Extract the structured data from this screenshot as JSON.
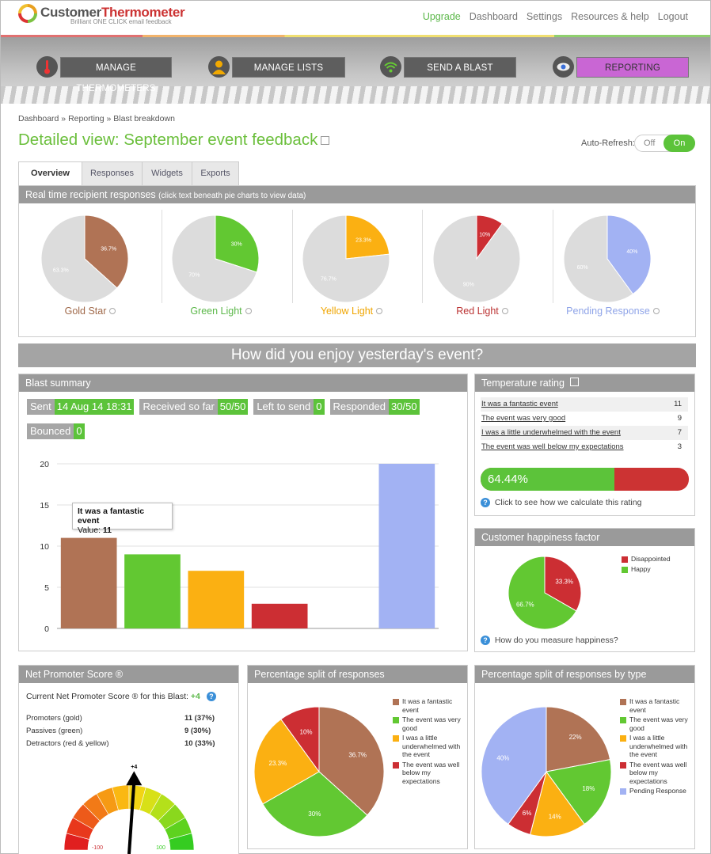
{
  "header": {
    "logo_primary": "Customer",
    "logo_secondary": "Thermometer",
    "logo_tagline": "Brilliant ONE CLICK email feedback",
    "nav": [
      "Upgrade",
      "Dashboard",
      "Settings",
      "Resources & help",
      "Logout"
    ]
  },
  "mainnav": [
    {
      "label": "MANAGE THERMOMETERS",
      "icon": "thermometer-icon"
    },
    {
      "label": "MANAGE LISTS",
      "icon": "person-icon"
    },
    {
      "label": "SEND A BLAST",
      "icon": "wifi-icon"
    },
    {
      "label": "REPORTING",
      "icon": "eye-icon"
    }
  ],
  "breadcrumb": [
    "Dashboard",
    "Reporting",
    "Blast breakdown"
  ],
  "breadcrumb_sep": "»",
  "page_title": "Detailed view: September event feedback",
  "auto_refresh": {
    "label": "Auto-Refresh:",
    "off": "Off",
    "on": "On"
  },
  "tabs": [
    "Overview",
    "Responses",
    "Widgets",
    "Exports"
  ],
  "realtime_panel": {
    "title": "Real time recipient responses",
    "hint": "(click text beneath pie charts to view data)"
  },
  "question": "How did you enjoy yesterday's event?",
  "blast_summary": {
    "title": "Blast summary",
    "stats": [
      {
        "label": "Sent",
        "value": "14 Aug 14 18:31"
      },
      {
        "label": "Received so far",
        "value": "50/50"
      },
      {
        "label": "Left to send",
        "value": "0"
      },
      {
        "label": "Responded",
        "value": "30/50"
      },
      {
        "label": "Bounced",
        "value": "0"
      }
    ]
  },
  "tooltip": {
    "title": "It was a fantastic event",
    "value_label": "Value:",
    "value": "11"
  },
  "temperature_rating": {
    "title": "Temperature rating",
    "rows": [
      {
        "label": "It was a fantastic event",
        "count": "11"
      },
      {
        "label": "The event was very good",
        "count": "9"
      },
      {
        "label": "I was a little underwhelmed with the event",
        "count": "7"
      },
      {
        "label": "The event was well below my expectations",
        "count": "3"
      }
    ],
    "rating_text": "64.44%",
    "rating_value": 64.44,
    "help_text": "Click to see how we calculate this rating"
  },
  "happiness": {
    "title": "Customer happiness factor",
    "help_text": "How do you measure happiness?"
  },
  "nps": {
    "title": "Net Promoter Score ®",
    "current_label": "Current Net Promoter Score ® for this Blast:",
    "current_value": "+4",
    "rows": [
      {
        "label": "Promoters (gold)",
        "value": "11 (37%)"
      },
      {
        "label": "Passives (green)",
        "value": "9 (30%)"
      },
      {
        "label": "Detractors (red & yellow)",
        "value": "10 (33%)"
      }
    ],
    "gauge_value": 4,
    "gauge_pointer_label": "+4",
    "gauge_min_label": "-100",
    "gauge_max_label": "100"
  },
  "split_panel": {
    "title": "Percentage split of responses"
  },
  "split_type_panel": {
    "title": "Percentage split of responses by type"
  },
  "colors": {
    "gold": "#b07355",
    "green": "#62c832",
    "yellow": "#fbb012",
    "red": "#cc2e33",
    "pending": "#a2b2f3",
    "grey": "#dcdcdc",
    "accent": "#c966d4"
  },
  "chart_data": [
    {
      "type": "pie",
      "name": "Gold Star",
      "slices": [
        {
          "label": "Gold Star",
          "value": 36.7,
          "text": "36.7%"
        },
        {
          "label": "Other",
          "value": 63.3,
          "text": "63.3%"
        }
      ]
    },
    {
      "type": "pie",
      "name": "Green Light",
      "slices": [
        {
          "label": "Green Light",
          "value": 30,
          "text": "30%"
        },
        {
          "label": "Other",
          "value": 70,
          "text": "70%"
        }
      ]
    },
    {
      "type": "pie",
      "name": "Yellow Light",
      "slices": [
        {
          "label": "Yellow Light",
          "value": 23.3,
          "text": "23.3%"
        },
        {
          "label": "Other",
          "value": 76.7,
          "text": "76.7%"
        }
      ]
    },
    {
      "type": "pie",
      "name": "Red Light",
      "slices": [
        {
          "label": "Red Light",
          "value": 10,
          "text": "10%"
        },
        {
          "label": "Other",
          "value": 90,
          "text": "90%"
        }
      ]
    },
    {
      "type": "pie",
      "name": "Pending Response",
      "slices": [
        {
          "label": "Pending Response",
          "value": 40,
          "text": "40%"
        },
        {
          "label": "Other",
          "value": 60,
          "text": "60%"
        }
      ]
    },
    {
      "type": "bar",
      "categories": [
        "It was a fantastic event",
        "The event was very good",
        "I was a little underwhelmed with the event",
        "The event was well below my expectations",
        "",
        "Pending Response"
      ],
      "values": [
        11,
        9,
        7,
        3,
        null,
        20
      ],
      "ylim": [
        0,
        20
      ],
      "yticks": [
        0,
        5,
        10,
        15,
        20
      ],
      "grid": true
    },
    {
      "type": "pie",
      "name": "Customer happiness factor",
      "legend": "right",
      "slices": [
        {
          "label": "Disappointed",
          "value": 33.3,
          "text": "33.3%"
        },
        {
          "label": "Happy",
          "value": 66.7,
          "text": "66.7%"
        }
      ]
    },
    {
      "type": "pie",
      "name": "Percentage split of responses",
      "legend": "right",
      "slices": [
        {
          "label": "It was a fantastic event",
          "value": 36.7,
          "text": "36.7%"
        },
        {
          "label": "The event was very good",
          "value": 30,
          "text": "30%"
        },
        {
          "label": "I was a little underwhelmed with the event",
          "value": 23.3,
          "text": "23.3%"
        },
        {
          "label": "The event was well below my expectations",
          "value": 10,
          "text": "10%"
        }
      ]
    },
    {
      "type": "pie",
      "name": "Percentage split of responses by type",
      "legend": "right",
      "slices": [
        {
          "label": "It was a fantastic event",
          "value": 22,
          "text": "22%"
        },
        {
          "label": "The event was very good",
          "value": 18,
          "text": "18%"
        },
        {
          "label": "I was a little underwhelmed with the event",
          "value": 14,
          "text": "14%"
        },
        {
          "label": "The event was well below my expectations",
          "value": 6,
          "text": "6%"
        },
        {
          "label": "Pending Response",
          "value": 40,
          "text": "40%"
        }
      ]
    }
  ]
}
